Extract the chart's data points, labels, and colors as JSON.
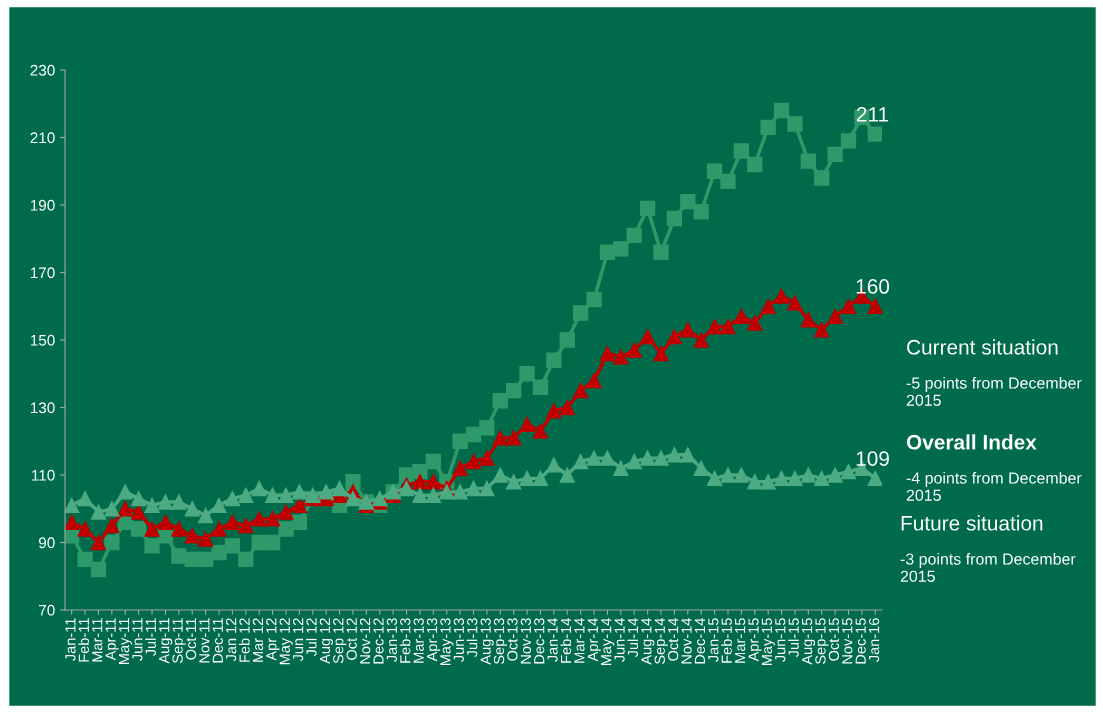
{
  "chart_data": {
    "type": "line",
    "categories": [
      "Jan-11",
      "Feb-11",
      "Mar-11",
      "Apr-11",
      "May-11",
      "Jun-11",
      "Jul-11",
      "Aug-11",
      "Sep-11",
      "Oct-11",
      "Nov-11",
      "Dec-11",
      "Jan 12",
      "Feb 12",
      "Mar 12",
      "Apr 12",
      "May 12",
      "Jun 12",
      "Jul 12",
      "Aug 12",
      "Sep 12",
      "Oct 12",
      "Nov-12",
      "Dec-12",
      "Jan-13",
      "Feb-13",
      "Mar-13",
      "Apr-13",
      "May-13",
      "Jun-13",
      "Jul-13",
      "Aug-13",
      "Sep-13",
      "Oct-13",
      "Nov-13",
      "Dec-13",
      "Jan-14",
      "Feb-14",
      "Mar-14",
      "Apr-14",
      "May-14",
      "Jun-14",
      "Jul-14",
      "Aug-14",
      "Sep-14",
      "Oct-14",
      "Nov-14",
      "Dec-14",
      "Jan-15",
      "Feb-15",
      "Mar-15",
      "Apr-15",
      "May-15",
      "Jun-15",
      "Jul-15",
      "Aug-15",
      "Sep-15",
      "Oct-15",
      "Nov-15",
      "Dec-15",
      "Jan-16"
    ],
    "series": [
      {
        "name": "Current situation",
        "color": "#2e9a6a",
        "marker": "square",
        "values": [
          92,
          85,
          82,
          90,
          96,
          94,
          89,
          92,
          86,
          85,
          85,
          87,
          89,
          85,
          90,
          90,
          94,
          96,
          103,
          103,
          101,
          108,
          102,
          101,
          105,
          110,
          111,
          114,
          108,
          120,
          122,
          124,
          132,
          135,
          140,
          136,
          144,
          150,
          158,
          162,
          176,
          177,
          181,
          189,
          176,
          186,
          191,
          188,
          200,
          197,
          206,
          202,
          213,
          218,
          214,
          203,
          198,
          205,
          209,
          216,
          211
        ]
      },
      {
        "name": "Overall Index",
        "color": "#c00000",
        "marker": "triangle",
        "values": [
          96,
          94,
          90,
          95,
          100,
          99,
          94,
          96,
          94,
          92,
          91,
          94,
          96,
          95,
          97,
          97,
          99,
          101,
          103,
          103,
          104,
          105,
          101,
          102,
          104,
          107,
          108,
          108,
          106,
          112,
          114,
          115,
          121,
          121,
          125,
          123,
          129,
          130,
          135,
          138,
          146,
          145,
          147,
          151,
          146,
          151,
          153,
          150,
          154,
          154,
          157,
          155,
          160,
          163,
          161,
          156,
          153,
          157,
          160,
          163,
          160
        ]
      },
      {
        "name": "Future situation",
        "color": "#4dab83",
        "marker": "triangle",
        "values": [
          101,
          103,
          99,
          100,
          105,
          103,
          101,
          102,
          102,
          100,
          98,
          101,
          103,
          104,
          106,
          104,
          104,
          105,
          104,
          105,
          106,
          103,
          102,
          103,
          105,
          106,
          104,
          104,
          105,
          105,
          106,
          106,
          110,
          108,
          109,
          109,
          113,
          110,
          114,
          115,
          115,
          112,
          114,
          115,
          115,
          116,
          116,
          112,
          109,
          110,
          110,
          108,
          108,
          109,
          109,
          110,
          109,
          110,
          111,
          112,
          109
        ]
      }
    ],
    "ylim": [
      70,
      230
    ],
    "yticks": [
      70,
      90,
      110,
      130,
      150,
      170,
      190,
      210,
      230
    ],
    "grid": false,
    "legend": "right",
    "line_style": "solid",
    "annotations": [
      {
        "text": "211",
        "x": "Jan-16",
        "y": 211
      },
      {
        "text": "160",
        "x": "Jan-16",
        "y": 160
      },
      {
        "text": "109",
        "x": "Jan-16",
        "y": 109
      },
      "-5 points from December 2015",
      "-4 points from December 2015",
      "-3 points from December 2015"
    ]
  }
}
